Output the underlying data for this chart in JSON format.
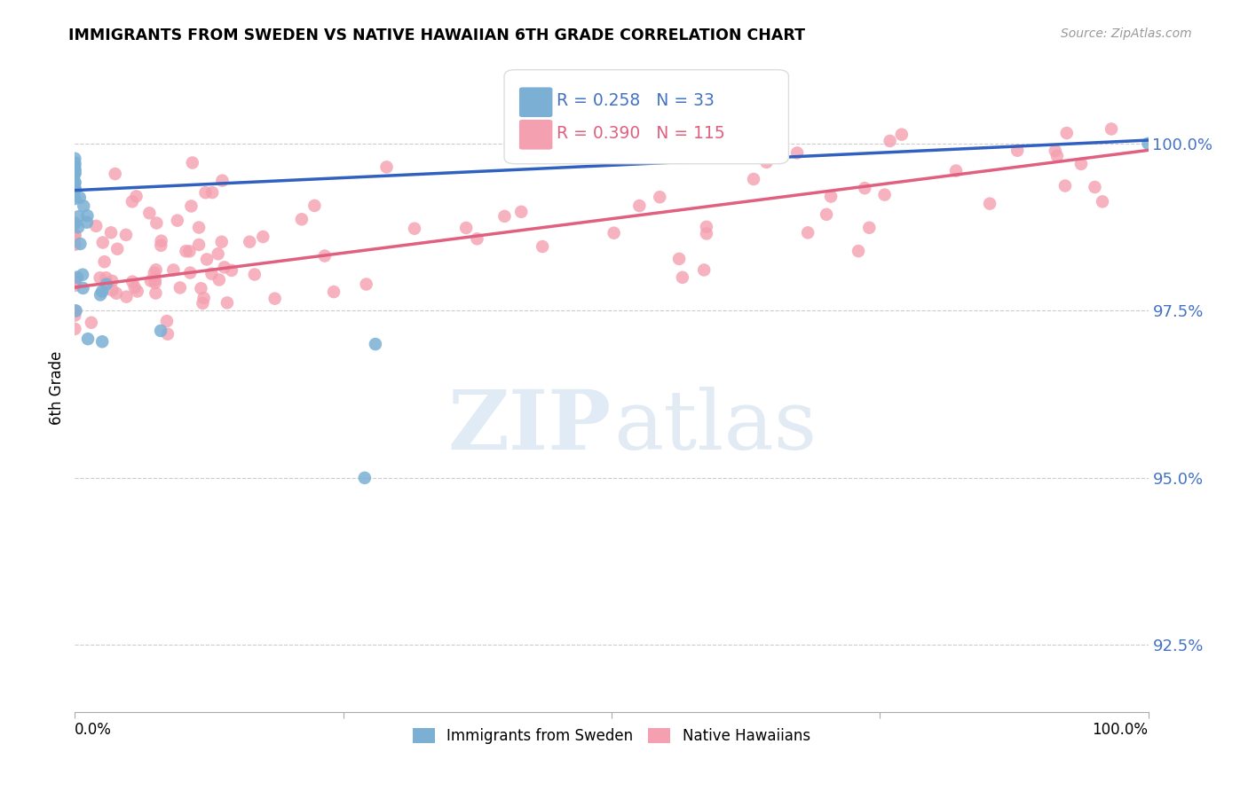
{
  "title": "IMMIGRANTS FROM SWEDEN VS NATIVE HAWAIIAN 6TH GRADE CORRELATION CHART",
  "source": "Source: ZipAtlas.com",
  "ylabel": "6th Grade",
  "yticks": [
    92.5,
    95.0,
    97.5,
    100.0
  ],
  "ytick_labels": [
    "92.5%",
    "95.0%",
    "97.5%",
    "100.0%"
  ],
  "xmin": 0.0,
  "xmax": 1.0,
  "ymin": 91.5,
  "ymax": 101.2,
  "legend_r_blue": "0.258",
  "legend_n_blue": "33",
  "legend_r_pink": "0.390",
  "legend_n_pink": "115",
  "blue_color": "#7bafd4",
  "pink_color": "#f4a0b0",
  "blue_line_color": "#3060c0",
  "pink_line_color": "#e06080",
  "blue_line_y0": 99.3,
  "blue_line_y1": 100.05,
  "pink_line_y0": 97.85,
  "pink_line_y1": 99.9
}
